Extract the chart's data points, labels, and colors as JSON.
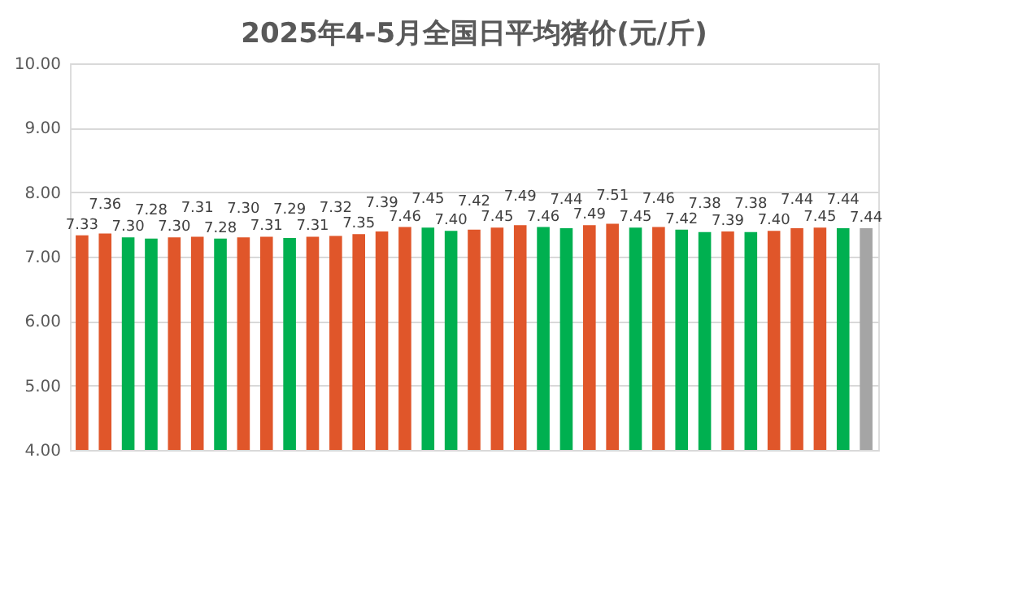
{
  "chart_data": {
    "type": "bar",
    "title": "2025年4-5月全国日平均猪价(元/斤)",
    "categories": [
      null,
      null,
      null,
      null,
      null,
      null,
      null,
      null,
      null,
      null,
      null,
      null,
      null,
      null,
      null,
      null,
      null,
      null,
      null,
      null,
      null,
      null,
      null,
      null,
      null,
      null,
      null,
      null,
      null,
      null,
      null,
      null,
      null,
      null,
      null
    ],
    "values": [
      7.33,
      7.36,
      7.3,
      7.28,
      7.3,
      7.31,
      7.28,
      7.3,
      7.31,
      7.29,
      7.31,
      7.32,
      7.35,
      7.39,
      7.46,
      7.45,
      7.4,
      7.42,
      7.45,
      7.49,
      7.46,
      7.44,
      7.49,
      7.51,
      7.45,
      7.46,
      7.42,
      7.38,
      7.39,
      7.38,
      7.4,
      7.44,
      7.45,
      7.44,
      7.44
    ],
    "value_labels": [
      "7.33",
      "7.36",
      "7.30",
      "7.28",
      "7.30",
      "7.31",
      "7.28",
      "7.30",
      "7.31",
      "7.29",
      "7.31",
      "7.32",
      "7.35",
      "7.39",
      "7.46",
      "7.45",
      "7.40",
      "7.42",
      "7.45",
      "7.49",
      "7.46",
      "7.44",
      "7.49",
      "7.51",
      "7.45",
      "7.46",
      "7.42",
      "7.38",
      "7.39",
      "7.38",
      "7.40",
      "7.44",
      "7.45",
      "7.44",
      "7.44"
    ],
    "colors": [
      "#e0562a",
      "#e0562a",
      "#00b050",
      "#00b050",
      "#e0562a",
      "#e0562a",
      "#00b050",
      "#e0562a",
      "#e0562a",
      "#00b050",
      "#e0562a",
      "#e0562a",
      "#e0562a",
      "#e0562a",
      "#e0562a",
      "#00b050",
      "#00b050",
      "#e0562a",
      "#e0562a",
      "#e0562a",
      "#00b050",
      "#00b050",
      "#e0562a",
      "#e0562a",
      "#00b050",
      "#e0562a",
      "#00b050",
      "#00b050",
      "#e0562a",
      "#00b050",
      "#e0562a",
      "#e0562a",
      "#e0562a",
      "#00b050",
      "#a5a5a5"
    ],
    "ylim": [
      4,
      10
    ],
    "yticks": [
      {
        "value": 4,
        "label": "4.00"
      },
      {
        "value": 5,
        "label": "5.00"
      },
      {
        "value": 6,
        "label": "6.00"
      },
      {
        "value": 7,
        "label": "7.00"
      },
      {
        "value": 8,
        "label": "8.00"
      },
      {
        "value": 9,
        "label": "9.00"
      },
      {
        "value": 10,
        "label": "10.00"
      }
    ],
    "grid": "y",
    "tick_labels": "y"
  }
}
